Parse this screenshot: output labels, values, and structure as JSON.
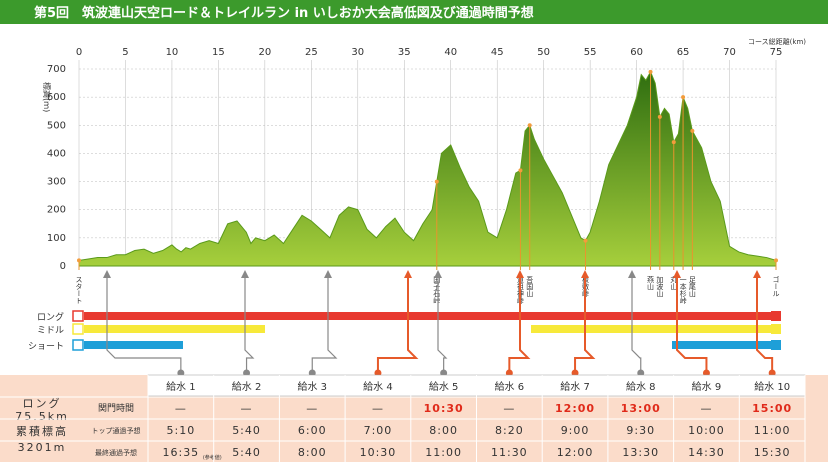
{
  "title": "第5回　筑波連山天空ロード＆トレイルラン in いしおか大会高低図及び通過時間予想",
  "chart_data": {
    "type": "area",
    "y_label": "標高(ｍ)",
    "x_label": "コース総距離(km)",
    "color": "#5a9a1a",
    "xlim": [
      0,
      75
    ],
    "xticks": [
      0,
      5,
      10,
      15,
      20,
      25,
      30,
      35,
      40,
      45,
      50,
      55,
      60,
      65,
      70,
      75
    ],
    "ylim": [
      0,
      700
    ],
    "yticks": [
      0,
      100,
      200,
      300,
      400,
      500,
      600,
      700
    ],
    "x": [
      0,
      1,
      2,
      3,
      4,
      5,
      6,
      7,
      8,
      9,
      10,
      10.5,
      11,
      11.5,
      12,
      13,
      14,
      15,
      16,
      17,
      18,
      18.5,
      19,
      20,
      21,
      22,
      23,
      24,
      25,
      26,
      27,
      28,
      29,
      30,
      31,
      32,
      33,
      34,
      35,
      36,
      37,
      38,
      38.5,
      39,
      40,
      41,
      42,
      43,
      44,
      45,
      46,
      47,
      47.5,
      48,
      48.5,
      49,
      50,
      51,
      52,
      53,
      54,
      54.5,
      55,
      56,
      57,
      58,
      59,
      60,
      60.5,
      61,
      61.5,
      62,
      62.5,
      63,
      63.5,
      64,
      64.5,
      65,
      65.5,
      66,
      67,
      68,
      69,
      70,
      71,
      72,
      73,
      74,
      75
    ],
    "values": [
      20,
      25,
      30,
      30,
      40,
      40,
      55,
      60,
      45,
      55,
      75,
      60,
      50,
      65,
      60,
      80,
      90,
      80,
      150,
      160,
      120,
      80,
      100,
      90,
      110,
      80,
      130,
      180,
      160,
      130,
      100,
      180,
      210,
      200,
      130,
      100,
      140,
      170,
      120,
      90,
      150,
      200,
      300,
      400,
      430,
      350,
      280,
      230,
      120,
      100,
      200,
      330,
      340,
      480,
      500,
      450,
      380,
      320,
      260,
      180,
      100,
      90,
      120,
      230,
      360,
      430,
      500,
      600,
      680,
      660,
      690,
      650,
      530,
      560,
      540,
      440,
      470,
      600,
      560,
      480,
      420,
      300,
      230,
      70,
      50,
      40,
      35,
      30,
      20
    ]
  },
  "places": [
    "スタート",
    "国子石峠",
    "道祖神峠",
    "吾国山",
    "板敷峠",
    "燕山",
    "加波山",
    "丸山",
    "一本杉峠",
    "足尾山",
    "ゴール"
  ],
  "courses": [
    "ロング",
    "ミドル",
    "ショート"
  ],
  "table": {
    "left": [
      "ロング",
      "75.5km",
      "累積標高",
      "3201m"
    ],
    "row_labels": [
      "関門時間",
      "トップ通過予想",
      "最終通過予想"
    ],
    "stations": [
      "給水 1",
      "給水 2",
      "給水 3",
      "給水 4",
      "給水 5",
      "給水 6",
      "給水 7",
      "給水 8",
      "給水 9",
      "給水 10"
    ],
    "rows": [
      [
        "—",
        "—",
        "—",
        "—",
        "10:30",
        "—",
        "12:00",
        "13:00",
        "—",
        "15:00"
      ],
      [
        "5:10",
        "5:40",
        "6:00",
        "7:00",
        "8:00",
        "8:20",
        "9:00",
        "9:30",
        "10:00",
        "11:00"
      ],
      [
        "16:35",
        "5:40",
        "8:00",
        "10:30",
        "11:00",
        "11:30",
        "12:00",
        "13:30",
        "14:30",
        "15:30"
      ]
    ],
    "note": "(参考値)"
  }
}
